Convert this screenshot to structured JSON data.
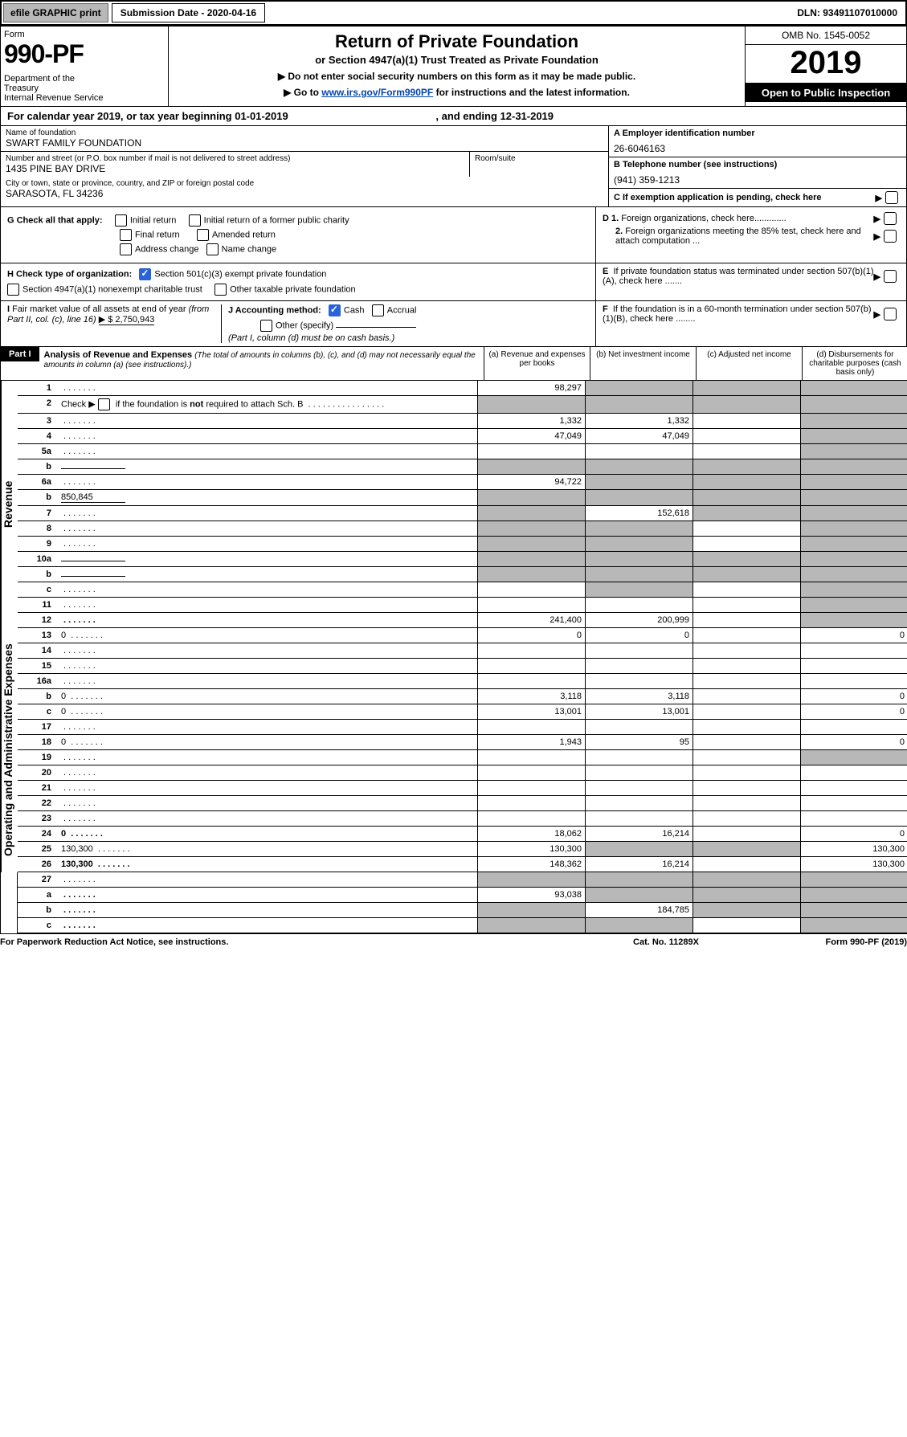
{
  "top": {
    "efile": "efile GRAPHIC print",
    "sub_label": "Submission Date - 2020-04-16",
    "dln": "DLN: 93491107010000"
  },
  "header": {
    "form": "Form",
    "form990": "990-PF",
    "dept": "Department of the Treasury\nInternal Revenue Service",
    "title": "Return of Private Foundation",
    "subtitle": "or Section 4947(a)(1) Trust Treated as Private Foundation",
    "warn1": "▶ Do not enter social security numbers on this form as it may be made public.",
    "warn2_pre": "▶ Go to ",
    "warn2_link": "www.irs.gov/Form990PF",
    "warn2_post": " for instructions and the latest information.",
    "omb": "OMB No. 1545-0052",
    "year": "2019",
    "open": "Open to Public Inspection"
  },
  "cal": {
    "text": "For calendar year 2019, or tax year beginning 01-01-2019",
    "end": ", and ending 12-31-2019"
  },
  "info": {
    "name_lbl": "Name of foundation",
    "name": "SWART FAMILY FOUNDATION",
    "addr_lbl": "Number and street (or P.O. box number if mail is not delivered to street address)",
    "addr": "1435 PINE BAY DRIVE",
    "room_lbl": "Room/suite",
    "city_lbl": "City or town, state or province, country, and ZIP or foreign postal code",
    "city": "SARASOTA, FL  34236",
    "a_lbl": "A Employer identification number",
    "a": "26-6046163",
    "b_lbl": "B Telephone number (see instructions)",
    "b": "(941) 359-1213",
    "c_lbl": "C If exemption application is pending, check here"
  },
  "g": {
    "label": "G Check all that apply:",
    "initial": "Initial return",
    "initial_pub": "Initial return of a former public charity",
    "final": "Final return",
    "amended": "Amended return",
    "addr": "Address change",
    "name": "Name change"
  },
  "h": {
    "label": "H Check type of organization:",
    "sec501": "Section 501(c)(3) exempt private foundation",
    "sec4947": "Section 4947(a)(1) nonexempt charitable trust",
    "other_tax": "Other taxable private foundation"
  },
  "i": {
    "label": "I Fair market value of all assets at end of year (from Part II, col. (c), line 16)",
    "val": "▶ $  2,750,943"
  },
  "j": {
    "label": "J Accounting method:",
    "cash": "Cash",
    "accrual": "Accrual",
    "other": "Other (specify)",
    "note": "(Part I, column (d) must be on cash basis.)"
  },
  "d": {
    "d1": "D 1. Foreign organizations, check here",
    "d2": "2. Foreign organizations meeting the 85% test, check here and attach computation ...",
    "e": "E  If private foundation status was terminated under section 507(b)(1)(A), check here .......",
    "f": "F  If the foundation is in a 60-month termination under section 507(b)(1)(B), check here ........"
  },
  "part1": {
    "title": "Part I",
    "heading": "Analysis of Revenue and Expenses",
    "note": "(The total of amounts in columns (b), (c), and (d) may not necessarily equal the amounts in column (a) (see instructions).)",
    "col_a": "(a) Revenue and expenses per books",
    "col_b": "(b) Net investment income",
    "col_c": "(c) Adjusted net income",
    "col_d": "(d) Disbursements for charitable purposes (cash basis only)",
    "revenue_label": "Revenue",
    "expenses_label": "Operating and Administrative Expenses"
  },
  "rows": [
    {
      "n": "1",
      "d": "",
      "a": "98,297",
      "b": "",
      "c": "",
      "sh": [
        "",
        "shade",
        "shade",
        "shade"
      ]
    },
    {
      "n": "2",
      "d": "",
      "a": "",
      "b": "",
      "c": "",
      "sh": [
        "shade",
        "shade",
        "shade",
        "shade"
      ],
      "cb": true
    },
    {
      "n": "3",
      "d": "",
      "a": "1,332",
      "b": "1,332",
      "c": "",
      "sh": [
        "",
        "",
        "",
        "shade"
      ]
    },
    {
      "n": "4",
      "d": "",
      "a": "47,049",
      "b": "47,049",
      "c": "",
      "sh": [
        "",
        "",
        "",
        "shade"
      ]
    },
    {
      "n": "5a",
      "d": "",
      "a": "",
      "b": "",
      "c": "",
      "sh": [
        "",
        "",
        "",
        "shade"
      ]
    },
    {
      "n": "b",
      "d": "",
      "a": "",
      "b": "",
      "c": "",
      "sh": [
        "shade",
        "shade",
        "shade",
        "shade"
      ],
      "uline": true
    },
    {
      "n": "6a",
      "d": "",
      "a": "94,722",
      "b": "",
      "c": "",
      "sh": [
        "",
        "shade",
        "shade",
        "shade"
      ]
    },
    {
      "n": "b",
      "d": "",
      "a": "",
      "b": "",
      "c": "",
      "sh": [
        "shade",
        "shade",
        "shade",
        "shade"
      ],
      "uline": true,
      "uval": "850,845"
    },
    {
      "n": "7",
      "d": "",
      "a": "",
      "b": "152,618",
      "c": "",
      "sh": [
        "shade",
        "",
        "shade",
        "shade"
      ]
    },
    {
      "n": "8",
      "d": "",
      "a": "",
      "b": "",
      "c": "",
      "sh": [
        "shade",
        "shade",
        "",
        "shade"
      ]
    },
    {
      "n": "9",
      "d": "",
      "a": "",
      "b": "",
      "c": "",
      "sh": [
        "shade",
        "shade",
        "",
        "shade"
      ]
    },
    {
      "n": "10a",
      "d": "",
      "a": "",
      "b": "",
      "c": "",
      "sh": [
        "shade",
        "shade",
        "shade",
        "shade"
      ],
      "uline": true
    },
    {
      "n": "b",
      "d": "",
      "a": "",
      "b": "",
      "c": "",
      "sh": [
        "shade",
        "shade",
        "shade",
        "shade"
      ],
      "uline": true
    },
    {
      "n": "c",
      "d": "",
      "a": "",
      "b": "",
      "c": "",
      "sh": [
        "",
        "shade",
        "",
        "shade"
      ]
    },
    {
      "n": "11",
      "d": "",
      "a": "",
      "b": "",
      "c": "",
      "sh": [
        "",
        "",
        "",
        "shade"
      ]
    },
    {
      "n": "12",
      "d": "",
      "a": "241,400",
      "b": "200,999",
      "c": "",
      "sh": [
        "",
        "",
        "",
        "shade"
      ],
      "bold": true
    }
  ],
  "rows2": [
    {
      "n": "13",
      "d": "0",
      "a": "0",
      "b": "0",
      "c": "",
      "sh": [
        "",
        "",
        "",
        ""
      ]
    },
    {
      "n": "14",
      "d": "",
      "a": "",
      "b": "",
      "c": "",
      "sh": [
        "",
        "",
        "",
        ""
      ]
    },
    {
      "n": "15",
      "d": "",
      "a": "",
      "b": "",
      "c": "",
      "sh": [
        "",
        "",
        "",
        ""
      ]
    },
    {
      "n": "16a",
      "d": "",
      "a": "",
      "b": "",
      "c": "",
      "sh": [
        "",
        "",
        "",
        ""
      ]
    },
    {
      "n": "b",
      "d": "0",
      "a": "3,118",
      "b": "3,118",
      "c": "",
      "sh": [
        "",
        "",
        "",
        ""
      ]
    },
    {
      "n": "c",
      "d": "0",
      "a": "13,001",
      "b": "13,001",
      "c": "",
      "sh": [
        "",
        "",
        "",
        ""
      ]
    },
    {
      "n": "17",
      "d": "",
      "a": "",
      "b": "",
      "c": "",
      "sh": [
        "",
        "",
        "",
        ""
      ]
    },
    {
      "n": "18",
      "d": "0",
      "a": "1,943",
      "b": "95",
      "c": "",
      "sh": [
        "",
        "",
        "",
        ""
      ]
    },
    {
      "n": "19",
      "d": "",
      "a": "",
      "b": "",
      "c": "",
      "sh": [
        "",
        "",
        "",
        "shade"
      ]
    },
    {
      "n": "20",
      "d": "",
      "a": "",
      "b": "",
      "c": "",
      "sh": [
        "",
        "",
        "",
        ""
      ]
    },
    {
      "n": "21",
      "d": "",
      "a": "",
      "b": "",
      "c": "",
      "sh": [
        "",
        "",
        "",
        ""
      ]
    },
    {
      "n": "22",
      "d": "",
      "a": "",
      "b": "",
      "c": "",
      "sh": [
        "",
        "",
        "",
        ""
      ]
    },
    {
      "n": "23",
      "d": "",
      "a": "",
      "b": "",
      "c": "",
      "sh": [
        "",
        "",
        "",
        ""
      ]
    },
    {
      "n": "24",
      "d": "0",
      "a": "18,062",
      "b": "16,214",
      "c": "",
      "sh": [
        "",
        "",
        "",
        ""
      ],
      "bold": true
    },
    {
      "n": "25",
      "d": "130,300",
      "a": "130,300",
      "b": "",
      "c": "",
      "sh": [
        "",
        "shade",
        "shade",
        ""
      ]
    },
    {
      "n": "26",
      "d": "130,300",
      "a": "148,362",
      "b": "16,214",
      "c": "",
      "sh": [
        "",
        "",
        "",
        ""
      ],
      "bold": true
    }
  ],
  "rows3": [
    {
      "n": "27",
      "d": "",
      "a": "",
      "b": "",
      "c": "",
      "sh": [
        "shade",
        "shade",
        "shade",
        "shade"
      ]
    },
    {
      "n": "a",
      "d": "",
      "a": "93,038",
      "b": "",
      "c": "",
      "sh": [
        "",
        "shade",
        "shade",
        "shade"
      ],
      "bold": true
    },
    {
      "n": "b",
      "d": "",
      "a": "",
      "b": "184,785",
      "c": "",
      "sh": [
        "shade",
        "",
        "shade",
        "shade"
      ],
      "bold": true
    },
    {
      "n": "c",
      "d": "",
      "a": "",
      "b": "",
      "c": "",
      "sh": [
        "shade",
        "shade",
        "",
        "shade"
      ],
      "bold": true
    }
  ],
  "footer": {
    "left": "For Paperwork Reduction Act Notice, see instructions.",
    "mid": "Cat. No. 11289X",
    "right": "Form 990-PF (2019)"
  }
}
